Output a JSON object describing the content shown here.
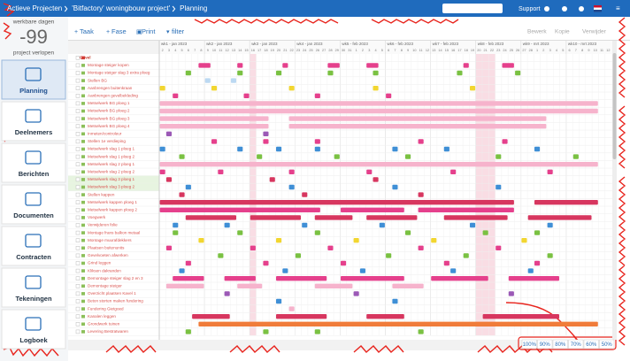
{
  "header": {
    "breadcrumb": [
      "Actieve Projecten",
      "'Bitfactory' woningbouw project'",
      "Planning"
    ],
    "support": "Support"
  },
  "sidebar": {
    "caption_top": "werkbare dagen",
    "counter": "-99",
    "caption_bottom": "project verlopen",
    "nav": [
      "Planning",
      "Deelnemers",
      "Berichten",
      "Documenten",
      "Contracten",
      "Tekeningen",
      "Logboek"
    ]
  },
  "toolbar": {
    "left": [
      "Taak",
      "Fase",
      "Print",
      "filter"
    ],
    "right": [
      "Bewerk",
      "Kopie",
      "Verwijder"
    ]
  },
  "timeline": {
    "weeks": [
      {
        "label": "wk1 - jan 2023",
        "days": [
          2,
          3,
          4,
          5,
          6,
          7,
          8
        ]
      },
      {
        "label": "wk2 - jan 2023",
        "days": [
          9,
          10,
          11,
          12,
          13,
          14,
          15
        ]
      },
      {
        "label": "wk3 - jan 2023",
        "days": [
          16,
          17,
          18,
          19,
          20,
          21,
          22
        ]
      },
      {
        "label": "wk4 - jan 2023",
        "days": [
          23,
          24,
          25,
          26,
          27,
          28,
          29
        ]
      },
      {
        "label": "wk5 - feb 2023",
        "days": [
          30,
          31,
          1,
          2,
          3,
          4,
          5
        ]
      },
      {
        "label": "wk6 - feb 2023",
        "days": [
          6,
          7,
          8,
          9,
          10,
          11,
          12
        ]
      },
      {
        "label": "wk7 - feb 2023",
        "days": [
          13,
          14,
          15,
          16,
          17,
          18,
          19
        ]
      },
      {
        "label": "wk8 - feb 2023",
        "days": [
          20,
          21,
          22,
          23,
          24,
          25,
          26
        ]
      },
      {
        "label": "wk9 - mrt 2023",
        "days": [
          27,
          28,
          1,
          2,
          3,
          4,
          5
        ]
      },
      {
        "label": "wk10 - mrt 2023",
        "days": [
          6,
          7,
          8,
          9,
          10,
          11,
          12
        ]
      }
    ]
  },
  "tasks": [
    {
      "name": "Gevel",
      "color": "#e5408c",
      "bars": []
    },
    {
      "name": "Montage steiger kopen",
      "color": "#e5408c",
      "bars": [
        [
          6,
          2
        ],
        [
          12,
          1
        ],
        [
          19,
          1
        ],
        [
          26,
          2
        ],
        [
          32,
          2
        ],
        [
          47,
          1
        ],
        [
          53,
          2
        ]
      ]
    },
    {
      "name": "Montage steiger slag 3 extra ploeg",
      "color": "#7ac142",
      "bars": [
        [
          4,
          1
        ],
        [
          12,
          1
        ],
        [
          18,
          1
        ],
        [
          26,
          1
        ],
        [
          33,
          1
        ],
        [
          46,
          1
        ],
        [
          55,
          1
        ]
      ]
    },
    {
      "name": "Stellen BG",
      "color": "#bcd9f2",
      "bars": [
        [
          7,
          1
        ],
        [
          11,
          1
        ]
      ]
    },
    {
      "name": "Aanbrengen buitenkraan",
      "color": "#f2d630",
      "bars": [
        [
          0,
          1
        ],
        [
          8,
          1
        ],
        [
          20,
          1
        ],
        [
          33,
          1
        ],
        [
          48,
          1
        ]
      ]
    },
    {
      "name": "Aanbrengen gevelbekleding",
      "color": "#e5408c",
      "bars": [
        [
          2,
          1
        ],
        [
          13,
          1
        ],
        [
          24,
          1
        ],
        [
          35,
          1
        ]
      ]
    },
    {
      "name": "Metselwerk BG ploeg 1",
      "color": "#f6b3cc",
      "bars": [
        [
          0,
          68
        ]
      ]
    },
    {
      "name": "Metselwerk BG ploeg 2",
      "color": "#f6b3cc",
      "bars": [
        [
          0,
          68
        ]
      ]
    },
    {
      "name": "Metselwerk BG ploeg 3",
      "color": "#f6b3cc",
      "bars": [
        [
          0,
          17
        ],
        [
          20,
          40
        ]
      ]
    },
    {
      "name": "Metselwerk BG ploeg 4",
      "color": "#f6b3cc",
      "bars": [
        [
          0,
          17
        ],
        [
          20,
          40
        ]
      ]
    },
    {
      "name": "Inmeten/controleur",
      "color": "#9b59b6",
      "bars": [
        [
          1,
          1
        ],
        [
          16,
          1
        ]
      ]
    },
    {
      "name": "Stellen 1e verdieping",
      "color": "#e5408c",
      "bars": [
        [
          8,
          1
        ],
        [
          16,
          1
        ],
        [
          24,
          1
        ],
        [
          40,
          1
        ],
        [
          53,
          1
        ]
      ]
    },
    {
      "name": "Metselwerk slag 1 ploeg 1",
      "color": "#3f8fd6",
      "bars": [
        [
          0,
          1
        ],
        [
          12,
          1
        ],
        [
          18,
          1
        ],
        [
          24,
          1
        ],
        [
          36,
          1
        ],
        [
          44,
          1
        ],
        [
          58,
          1
        ]
      ]
    },
    {
      "name": "Metselwerk slag 1 ploeg 2",
      "color": "#7ac142",
      "bars": [
        [
          3,
          1
        ],
        [
          15,
          1
        ],
        [
          27,
          1
        ],
        [
          38,
          1
        ],
        [
          52,
          1
        ],
        [
          64,
          1
        ]
      ]
    },
    {
      "name": "Metselwerk slag 2 ploeg 1",
      "color": "#f6b3cc",
      "bars": [
        [
          0,
          68
        ]
      ]
    },
    {
      "name": "Metselwerk slag 2 ploeg 2",
      "color": "#e5408c",
      "bars": [
        [
          0,
          1
        ],
        [
          9,
          1
        ],
        [
          20,
          1
        ],
        [
          32,
          1
        ],
        [
          45,
          1
        ],
        [
          60,
          1
        ]
      ]
    },
    {
      "name": "Metselwerk slag 3 ploeg 1",
      "color": "#d7365f",
      "bars": [
        [
          1,
          1
        ],
        [
          17,
          1
        ],
        [
          33,
          1
        ]
      ]
    },
    {
      "name": "Metselwerk slag 3 ploeg 2",
      "color": "#3f8fd6",
      "bars": [
        [
          4,
          1
        ],
        [
          20,
          1
        ],
        [
          36,
          1
        ],
        [
          52,
          1
        ]
      ]
    },
    {
      "name": "Stellen kappen",
      "color": "#d7365f",
      "bars": [
        [
          3,
          1
        ],
        [
          22,
          1
        ],
        [
          40,
          1
        ]
      ]
    },
    {
      "name": "Metselwerk kappen ploeg 1",
      "color": "#d7365f",
      "bars": [
        [
          0,
          55
        ],
        [
          58,
          10
        ]
      ]
    },
    {
      "name": "Metselwerk kappen ploeg 2",
      "color": "#e5408c",
      "bars": [
        [
          0,
          25
        ],
        [
          28,
          10
        ],
        [
          40,
          15
        ]
      ]
    },
    {
      "name": "Voegwerk",
      "color": "#d7365f",
      "bars": [
        [
          4,
          8
        ],
        [
          14,
          8
        ],
        [
          24,
          6
        ],
        [
          32,
          8
        ],
        [
          44,
          10
        ],
        [
          57,
          10
        ]
      ]
    },
    {
      "name": "Verwijderen folie",
      "color": "#3f8fd6",
      "bars": [
        [
          2,
          1
        ],
        [
          10,
          1
        ],
        [
          22,
          1
        ],
        [
          34,
          1
        ],
        [
          48,
          1
        ],
        [
          60,
          1
        ]
      ]
    },
    {
      "name": "Montage frans balkon metaal",
      "color": "#7ac142",
      "bars": [
        [
          2,
          1
        ],
        [
          12,
          1
        ],
        [
          24,
          1
        ],
        [
          38,
          1
        ],
        [
          50,
          1
        ],
        [
          58,
          1
        ]
      ]
    },
    {
      "name": "Montage muurafdekkers",
      "color": "#f2d630",
      "bars": [
        [
          6,
          1
        ],
        [
          18,
          1
        ],
        [
          30,
          1
        ],
        [
          42,
          1
        ],
        [
          56,
          1
        ]
      ]
    },
    {
      "name": "Plaatsen buitenunits",
      "color": "#e5408c",
      "bars": [
        [
          1,
          1
        ],
        [
          14,
          1
        ],
        [
          26,
          1
        ],
        [
          40,
          1
        ],
        [
          52,
          1
        ]
      ]
    },
    {
      "name": "Gevelvoeten afwerken",
      "color": "#7ac142",
      "bars": [
        [
          9,
          1
        ],
        [
          21,
          1
        ],
        [
          35,
          1
        ],
        [
          47,
          1
        ],
        [
          60,
          1
        ]
      ]
    },
    {
      "name": "Grind leggen",
      "color": "#e5408c",
      "bars": [
        [
          4,
          1
        ],
        [
          16,
          1
        ],
        [
          28,
          1
        ],
        [
          44,
          1
        ],
        [
          58,
          1
        ]
      ]
    },
    {
      "name": "Kliksen dakranden",
      "color": "#3f8fd6",
      "bars": [
        [
          3,
          1
        ],
        [
          19,
          1
        ],
        [
          31,
          1
        ],
        [
          45,
          1
        ],
        [
          57,
          1
        ]
      ]
    },
    {
      "name": "Demontage steiger slag 2 en 3",
      "color": "#e5408c",
      "bars": [
        [
          2,
          5
        ],
        [
          10,
          5
        ],
        [
          18,
          8
        ],
        [
          28,
          10
        ],
        [
          42,
          9
        ],
        [
          54,
          8
        ]
      ]
    },
    {
      "name": "Demontage steiger",
      "color": "#f6b3cc",
      "bars": [
        [
          1,
          6
        ],
        [
          12,
          4
        ],
        [
          24,
          6
        ],
        [
          36,
          5
        ]
      ]
    },
    {
      "name": "Overzicht plaatsen Kavel 1",
      "color": "#9b59b6",
      "bars": [
        [
          10,
          1
        ],
        [
          30,
          1
        ],
        [
          54,
          1
        ]
      ]
    },
    {
      "name": "Beton storten maken fundering",
      "color": "#3f8fd6",
      "bars": [
        [
          18,
          1
        ],
        [
          36,
          1
        ]
      ]
    },
    {
      "name": "Fundering Gietgoed",
      "color": "#f6b3cc",
      "bars": [
        [
          20,
          1
        ]
      ]
    },
    {
      "name": "Kanalen leggen",
      "color": "#d7365f",
      "bars": [
        [
          5,
          6
        ],
        [
          18,
          8
        ],
        [
          32,
          6
        ],
        [
          50,
          12
        ]
      ]
    },
    {
      "name": "Grondwerk tuinen",
      "color": "#f07c3a",
      "bars": [
        [
          6,
          62
        ]
      ]
    },
    {
      "name": "Levering Bestratwaren",
      "color": "#7ac142",
      "bars": [
        [
          4,
          1
        ],
        [
          16,
          1
        ],
        [
          24,
          1
        ],
        [
          40,
          1
        ]
      ]
    }
  ],
  "zoom": [
    "100%",
    "90%",
    "80%",
    "70%",
    "60%",
    "50%"
  ]
}
